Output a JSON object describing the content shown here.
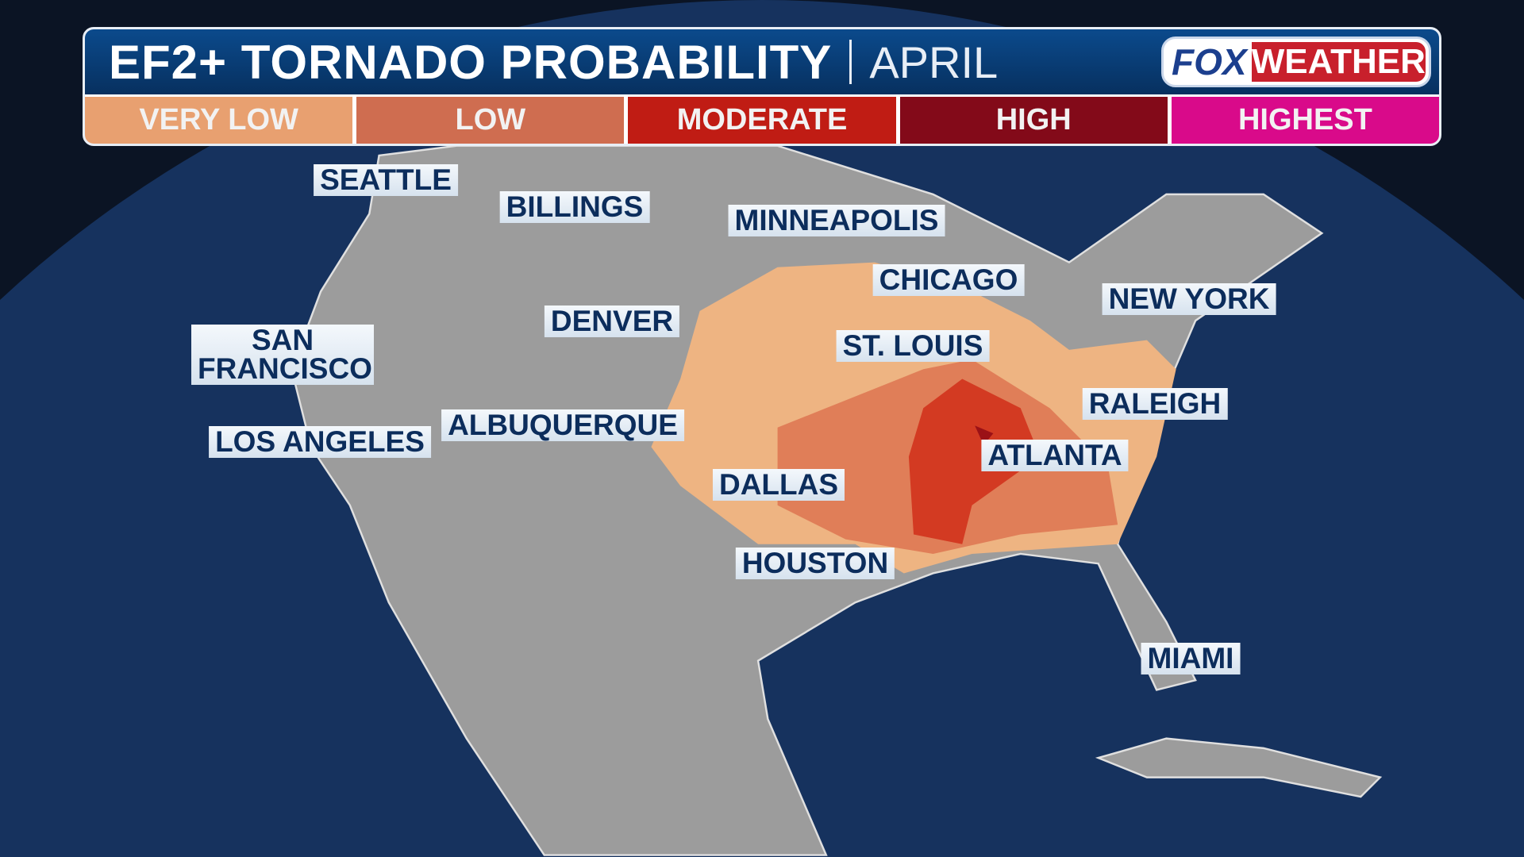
{
  "header": {
    "title": "EF2+ TORNADO PROBABILITY",
    "month": "APRIL",
    "logo": {
      "fox": "FOX",
      "weather": "WEATHER"
    }
  },
  "legend": [
    {
      "label": "VERY LOW",
      "color": "#e8a070"
    },
    {
      "label": "LOW",
      "color": "#cf6d50"
    },
    {
      "label": "MODERATE",
      "color": "#c01c14"
    },
    {
      "label": "HIGH",
      "color": "#830a19"
    },
    {
      "label": "HIGHEST",
      "color": "#d90a8a"
    }
  ],
  "cities": [
    "SEATTLE",
    "BILLINGS",
    "MINNEAPOLIS",
    "CHICAGO",
    "NEW YORK",
    "DENVER",
    "ST. LOUIS",
    "SAN FRANCISCO",
    "RALEIGH",
    "LOS ANGELES",
    "ALBUQUERQUE",
    "ATLANTA",
    "DALLAS",
    "HOUSTON",
    "MIAMI"
  ],
  "colors": {
    "ocean": "#16325e",
    "land": "#9a9a9a",
    "space": "#0b1424"
  }
}
